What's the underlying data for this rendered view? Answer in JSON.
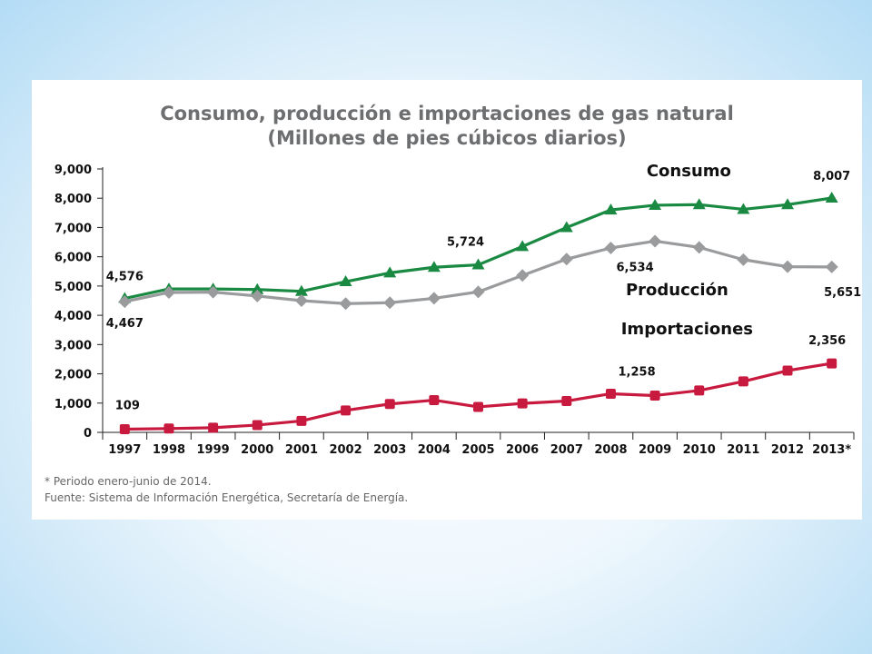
{
  "chart_data": {
    "type": "line",
    "title": "Consumo, producción e importaciones de gas natural",
    "subtitle": "(Millones de pies cúbicos diarios)",
    "categories": [
      "1997",
      "1998",
      "1999",
      "2000",
      "2001",
      "2002",
      "2003",
      "2004",
      "2005",
      "2006",
      "2007",
      "2008",
      "2009",
      "2010",
      "2011",
      "2012",
      "2013*"
    ],
    "ylim": [
      0,
      9000
    ],
    "yticks": [
      0,
      1000,
      2000,
      3000,
      4000,
      5000,
      6000,
      7000,
      8000,
      9000
    ],
    "ytick_labels": [
      "0",
      "1,000",
      "2,000",
      "3,000",
      "4,000",
      "5,000",
      "6,000",
      "7,000",
      "8,000",
      "9,000"
    ],
    "grid": false,
    "series": [
      {
        "name": "Consumo",
        "marker": "triangle",
        "color": "#1a8a43",
        "values": [
          4576,
          4900,
          4900,
          4880,
          4820,
          5150,
          5450,
          5640,
          5724,
          6350,
          7000,
          7600,
          7760,
          7780,
          7620,
          7780,
          8007
        ]
      },
      {
        "name": "Producción",
        "marker": "diamond",
        "color": "#9a9b9d",
        "values": [
          4467,
          4780,
          4790,
          4660,
          4500,
          4400,
          4430,
          4580,
          4800,
          5360,
          5920,
          6300,
          6534,
          6320,
          5900,
          5660,
          5651
        ]
      },
      {
        "name": "Importaciones",
        "marker": "square",
        "color": "#c8193f",
        "values": [
          109,
          130,
          160,
          250,
          390,
          750,
          970,
          1100,
          870,
          990,
          1070,
          1320,
          1258,
          1430,
          1740,
          2110,
          2356
        ]
      }
    ],
    "annotations": [
      {
        "series": 0,
        "index": 0,
        "text": "4,576"
      },
      {
        "series": 0,
        "index": 8,
        "text": "5,724"
      },
      {
        "series": 0,
        "index": 16,
        "text": "8,007"
      },
      {
        "series": 1,
        "index": 0,
        "text": "4,467"
      },
      {
        "series": 1,
        "index": 12,
        "text": "6,534"
      },
      {
        "series": 1,
        "index": 16,
        "text": "5,651"
      },
      {
        "series": 2,
        "index": 0,
        "text": "109"
      },
      {
        "series": 2,
        "index": 12,
        "text": "1,258"
      },
      {
        "series": 2,
        "index": 16,
        "text": "2,356"
      }
    ]
  },
  "footnotes": {
    "note1": "* Periodo enero-junio de 2014.",
    "note2": "Fuente: Sistema de Información Energética, Secretaría de Energía."
  }
}
